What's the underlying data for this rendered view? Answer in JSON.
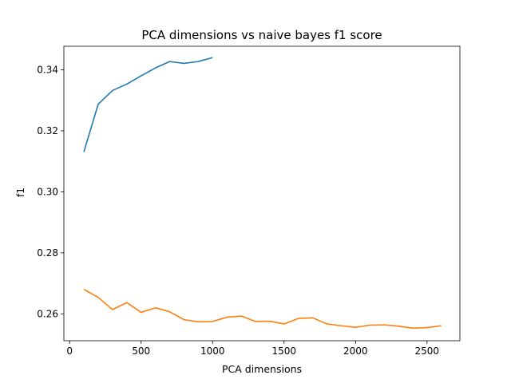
{
  "chart_data": {
    "type": "line",
    "title": "PCA dimensions vs naive bayes f1 score",
    "xlabel": "PCA dimensions",
    "ylabel": "f1",
    "xlim": [
      -40,
      2730
    ],
    "ylim": [
      0.2512,
      0.3477
    ],
    "xticks": [
      0,
      500,
      1000,
      1500,
      2000,
      2500
    ],
    "yticks": [
      0.26,
      0.28,
      0.3,
      0.32,
      0.34
    ],
    "ytick_labels": [
      "0.26",
      "0.28",
      "0.30",
      "0.32",
      "0.34"
    ],
    "grid": false,
    "series": [
      {
        "color": "#1f77b4",
        "x": [
          100,
          200,
          300,
          400,
          500,
          600,
          700,
          800,
          900,
          1000
        ],
        "y": [
          0.3131,
          0.3287,
          0.3332,
          0.3353,
          0.338,
          0.3406,
          0.3427,
          0.3421,
          0.3427,
          0.344
        ]
      },
      {
        "color": "#ff7f0e",
        "x": [
          100,
          200,
          300,
          400,
          500,
          600,
          700,
          800,
          900,
          1000,
          1100,
          1200,
          1300,
          1400,
          1500,
          1600,
          1700,
          1800,
          1900,
          2000,
          2100,
          2200,
          2300,
          2400,
          2500,
          2600
        ],
        "y": [
          0.268,
          0.2654,
          0.2614,
          0.2637,
          0.2605,
          0.262,
          0.2607,
          0.2581,
          0.2574,
          0.2575,
          0.2589,
          0.2593,
          0.2575,
          0.2576,
          0.2567,
          0.2585,
          0.2587,
          0.2567,
          0.2561,
          0.2556,
          0.2563,
          0.2564,
          0.256,
          0.2553,
          0.2555,
          0.2561
        ]
      }
    ]
  }
}
